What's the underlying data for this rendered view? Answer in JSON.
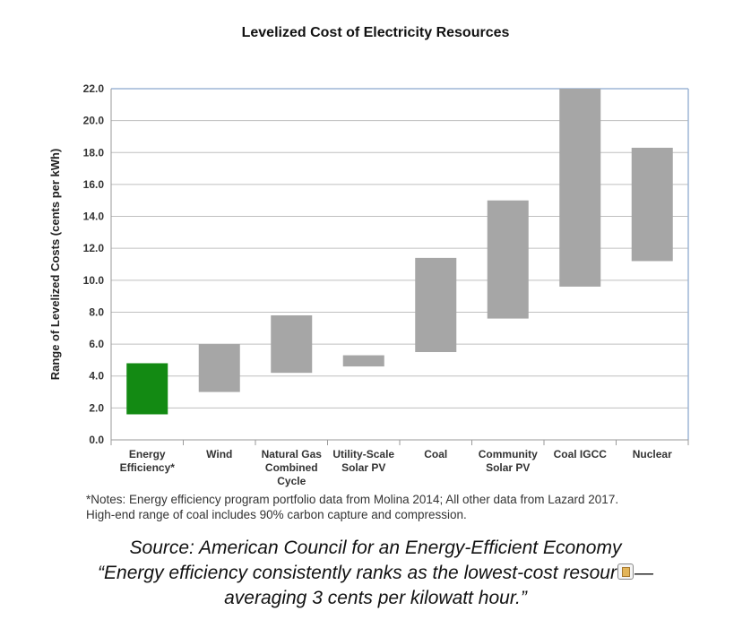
{
  "chart_data": {
    "type": "floating-bar",
    "title": "Levelized Cost of Electricity Resources",
    "ylabel": "Range of Levelized Costs (cents per kWh)",
    "xlabel": "",
    "ylim": [
      0,
      22
    ],
    "yticks": [
      "0.0",
      "2.0",
      "4.0",
      "6.0",
      "8.0",
      "10.0",
      "12.0",
      "14.0",
      "16.0",
      "18.0",
      "20.0",
      "22.0"
    ],
    "grid": true,
    "categories": [
      [
        "Energy",
        "Efficiency*"
      ],
      [
        "Wind"
      ],
      [
        "Natural Gas",
        "Combined",
        "Cycle"
      ],
      [
        "Utility-Scale",
        "Solar PV"
      ],
      [
        "Coal"
      ],
      [
        "Community",
        "Solar PV"
      ],
      [
        "Coal IGCC"
      ],
      [
        "Nuclear"
      ]
    ],
    "ranges": [
      {
        "low": 1.6,
        "high": 4.8
      },
      {
        "low": 3.0,
        "high": 6.0
      },
      {
        "low": 4.2,
        "high": 7.8
      },
      {
        "low": 4.6,
        "high": 5.3
      },
      {
        "low": 5.5,
        "high": 11.4
      },
      {
        "low": 7.6,
        "high": 15.0
      },
      {
        "low": 9.6,
        "high": 22.0
      },
      {
        "low": 11.2,
        "high": 18.3
      }
    ],
    "colors": [
      "#138a13",
      "#a6a6a6",
      "#a6a6a6",
      "#a6a6a6",
      "#a6a6a6",
      "#a6a6a6",
      "#a6a6a6",
      "#a6a6a6"
    ]
  },
  "notes": {
    "line1": "*Notes: Energy efficiency program portfolio data from Molina 2014; All other data from Lazard 2017.",
    "line2": "High-end range of coal includes 90% carbon capture and compression."
  },
  "source": {
    "line1": "Source: American Council for an Energy-Efficient Economy",
    "line2a": "“Energy efficiency consistently ranks as the lowest-cost resour",
    "line2_icon": "clipboard-paste-icon",
    "line2b": "—",
    "line3": "averaging 3 cents per kilowatt hour.”"
  }
}
